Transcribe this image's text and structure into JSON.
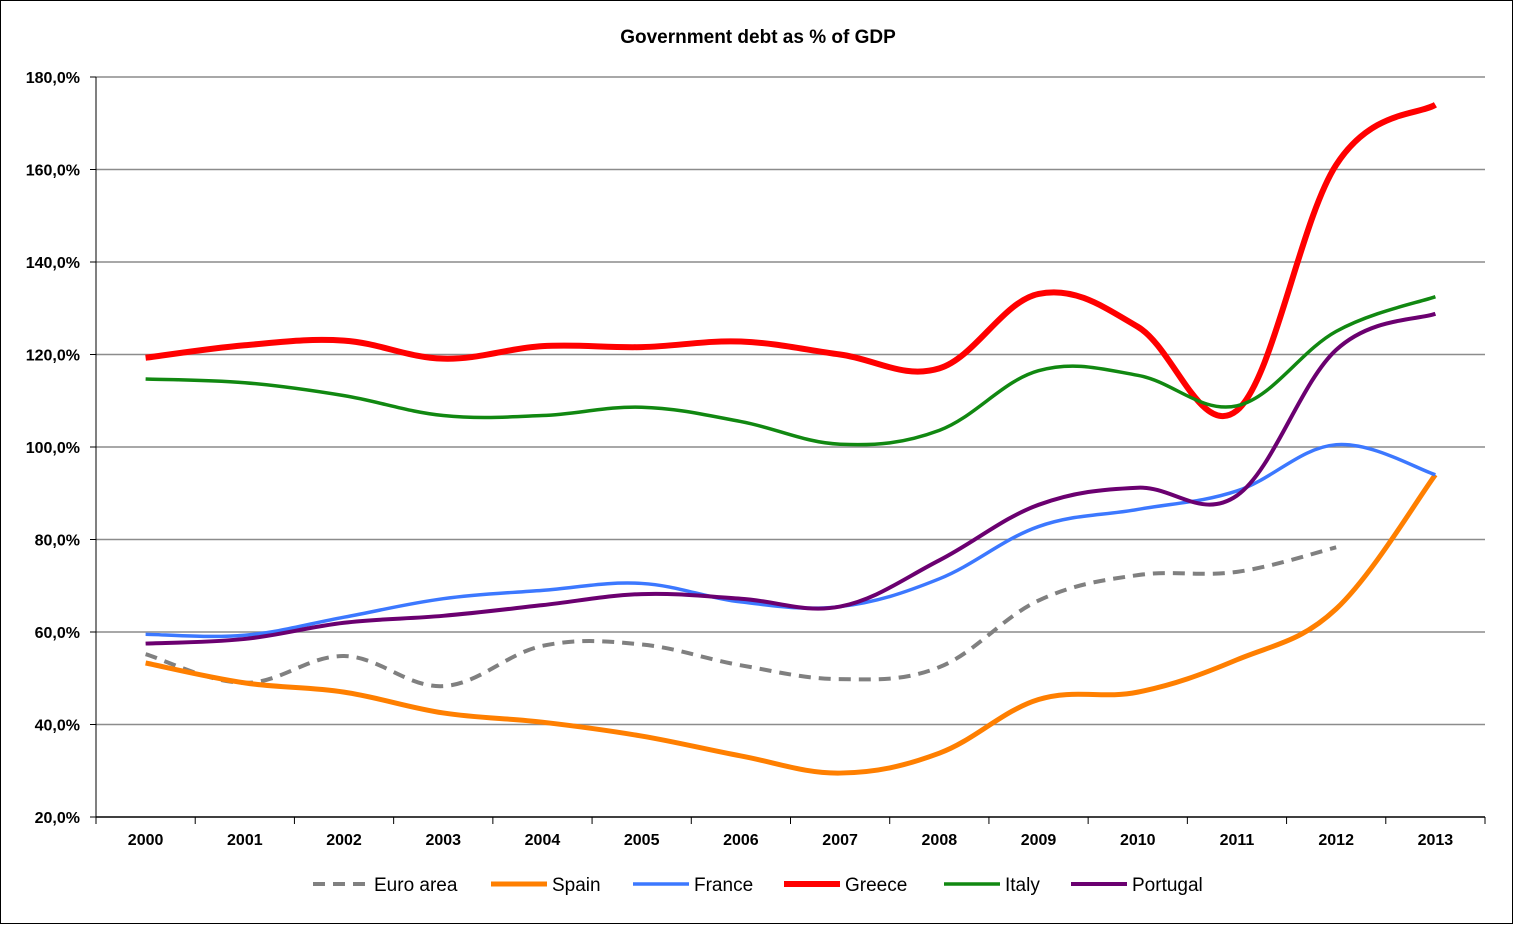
{
  "chart_data": {
    "type": "line",
    "title": "Government debt as % of GDP",
    "xlabel": "",
    "ylabel": "",
    "categories": [
      "2000",
      "2001",
      "2002",
      "2003",
      "2004",
      "2005",
      "2006",
      "2007",
      "2008",
      "2009",
      "2010",
      "2011",
      "2012",
      "2013"
    ],
    "ylim": [
      20,
      180
    ],
    "yticks": [
      20,
      40,
      60,
      80,
      100,
      120,
      140,
      160,
      180
    ],
    "ytick_labels": [
      "20,0%",
      "40,0%",
      "60,0%",
      "80,0%",
      "100,0%",
      "120,0%",
      "140,0%",
      "160,0%",
      "180,0%"
    ],
    "grid": true,
    "legend_position": "bottom",
    "series": [
      {
        "name": "Euro area",
        "color": "#808080",
        "dashed": true,
        "width": 4,
        "values": [
          55.2,
          49.0,
          54.8,
          48.3,
          57.0,
          57.3,
          52.8,
          49.8,
          52.4,
          66.8,
          72.3,
          73.0,
          78.3,
          null
        ]
      },
      {
        "name": "Spain",
        "color": "#FF7F00",
        "dashed": false,
        "width": 5,
        "values": [
          53.3,
          49.0,
          47.0,
          42.5,
          40.5,
          37.5,
          33.2,
          29.5,
          33.8,
          45.4,
          47.0,
          54.0,
          65.0,
          94.0
        ]
      },
      {
        "name": "France",
        "color": "#3C78FF",
        "dashed": false,
        "width": 3.5,
        "values": [
          59.5,
          59.3,
          63.2,
          67.2,
          69.0,
          70.5,
          66.5,
          65.5,
          71.5,
          82.8,
          86.5,
          90.5,
          100.5,
          94.0
        ]
      },
      {
        "name": "Greece",
        "color": "#FF0000",
        "dashed": false,
        "width": 6,
        "values": [
          119.3,
          122.0,
          123.0,
          119.1,
          121.8,
          121.6,
          122.8,
          120.0,
          117.0,
          133.1,
          126.0,
          107.9,
          161.0,
          174.0
        ]
      },
      {
        "name": "Italy",
        "color": "#118811",
        "dashed": false,
        "width": 3.5,
        "values": [
          114.7,
          113.9,
          111.1,
          106.8,
          106.8,
          108.6,
          105.5,
          100.6,
          103.6,
          116.5,
          115.5,
          108.9,
          125.0,
          132.5
        ]
      },
      {
        "name": "Portugal",
        "color": "#6B0070",
        "dashed": false,
        "width": 4,
        "values": [
          57.5,
          58.5,
          62.0,
          63.5,
          65.8,
          68.2,
          67.2,
          65.5,
          75.5,
          87.5,
          91.2,
          89.5,
          121.0,
          128.8
        ]
      }
    ]
  }
}
